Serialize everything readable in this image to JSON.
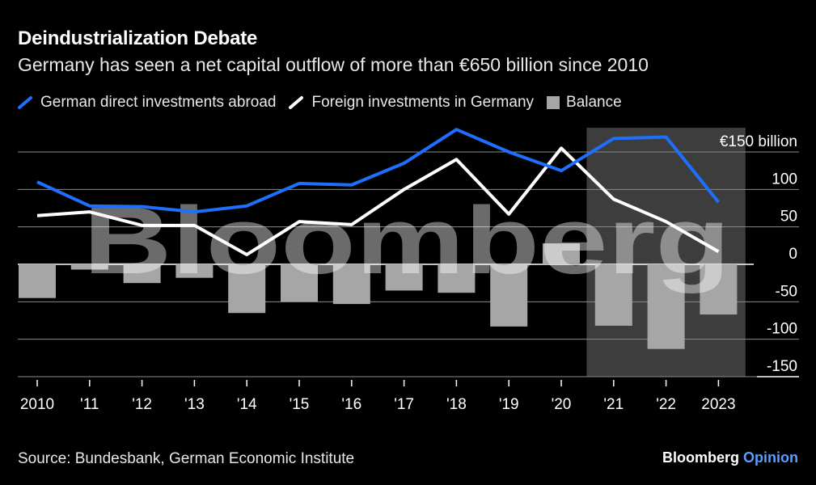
{
  "header": {
    "title": "Deindustrialization Debate",
    "subtitle": "Germany has seen a net capital outflow of more than €650 billion since 2010"
  },
  "legend": [
    {
      "label": "German direct investments abroad",
      "color": "#1f6fff",
      "kind": "line"
    },
    {
      "label": "Foreign investments in Germany",
      "color": "#ffffff",
      "kind": "line"
    },
    {
      "label": "Balance",
      "color": "#a6a6a6",
      "kind": "box"
    }
  ],
  "footer": {
    "source": "Source: Bundesbank, German Economic Institute",
    "brand_main": "Bloomberg",
    "brand_accent": "Opinion"
  },
  "watermark": "Bloomberg",
  "chart_data": {
    "type": "bar+line",
    "title": "Deindustrialization Debate",
    "subtitle": "Germany has seen a net capital outflow of more than €650 billion since 2010",
    "categories": [
      "2010",
      "'11",
      "'12",
      "'13",
      "'14",
      "'15",
      "'16",
      "'17",
      "'18",
      "'19",
      "'20",
      "'21",
      "'22",
      "2023"
    ],
    "series": [
      {
        "name": "German direct investments abroad",
        "type": "line",
        "color": "#1f6fff",
        "values": [
          110,
          78,
          77,
          70,
          78,
          108,
          106,
          135,
          180,
          150,
          125,
          168,
          170,
          83
        ]
      },
      {
        "name": "Foreign investments in Germany",
        "type": "line",
        "color": "#ffffff",
        "values": [
          65,
          70,
          52,
          52,
          13,
          57,
          53,
          100,
          140,
          67,
          155,
          87,
          57,
          17
        ]
      },
      {
        "name": "Balance",
        "type": "bar",
        "color": "#a6a6a6",
        "values": [
          -45,
          -7,
          -25,
          -18,
          -65,
          -50,
          -53,
          -35,
          -38,
          -83,
          28,
          -82,
          -113,
          -67
        ]
      }
    ],
    "y_axis": {
      "ticks": [
        150,
        100,
        50,
        0,
        -50,
        -100,
        -150
      ],
      "tick_labels": [
        "€150 billion",
        "100",
        "50",
        "0",
        "-50",
        "-100",
        "-150"
      ],
      "ylim": [
        -150,
        150
      ],
      "position": "right"
    },
    "highlight_range": [
      "'21",
      "2023"
    ],
    "grid": true,
    "legend_position": "top-left"
  }
}
